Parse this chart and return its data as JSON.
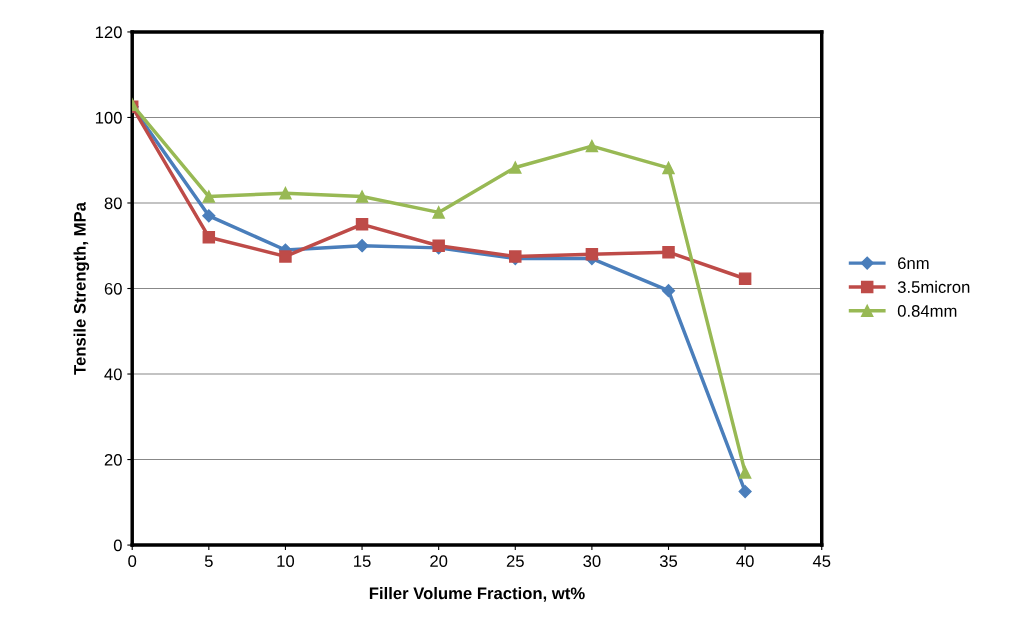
{
  "chart_data": {
    "type": "line",
    "xlabel": "Filler Volume Fraction, wt%",
    "ylabel": "Tensile Strength, MPa",
    "x": [
      0,
      5,
      10,
      15,
      20,
      25,
      30,
      35,
      40
    ],
    "series": [
      {
        "name": "6nm",
        "color": "#4a7ebb",
        "marker": "diamond",
        "values": [
          102.5,
          77,
          69,
          70,
          69.5,
          67,
          67,
          59.5,
          12.5
        ]
      },
      {
        "name": "3.5micron",
        "color": "#be4b48",
        "marker": "square",
        "values": [
          102.5,
          72,
          67.5,
          75,
          70,
          67.5,
          68,
          68.5,
          62.3
        ]
      },
      {
        "name": "0.84mm",
        "color": "#98b954",
        "marker": "triangle",
        "values": [
          103,
          81.5,
          82.3,
          81.5,
          77.8,
          88.3,
          93.3,
          88.2,
          17
        ]
      }
    ],
    "xlim": [
      0,
      45
    ],
    "xticks": [
      0,
      5,
      10,
      15,
      20,
      25,
      30,
      35,
      40,
      45
    ],
    "ylim": [
      0,
      120
    ],
    "yticks": [
      0,
      20,
      40,
      60,
      80,
      100,
      120
    ],
    "grid": "y",
    "legend": "right",
    "line_style": "solid"
  }
}
